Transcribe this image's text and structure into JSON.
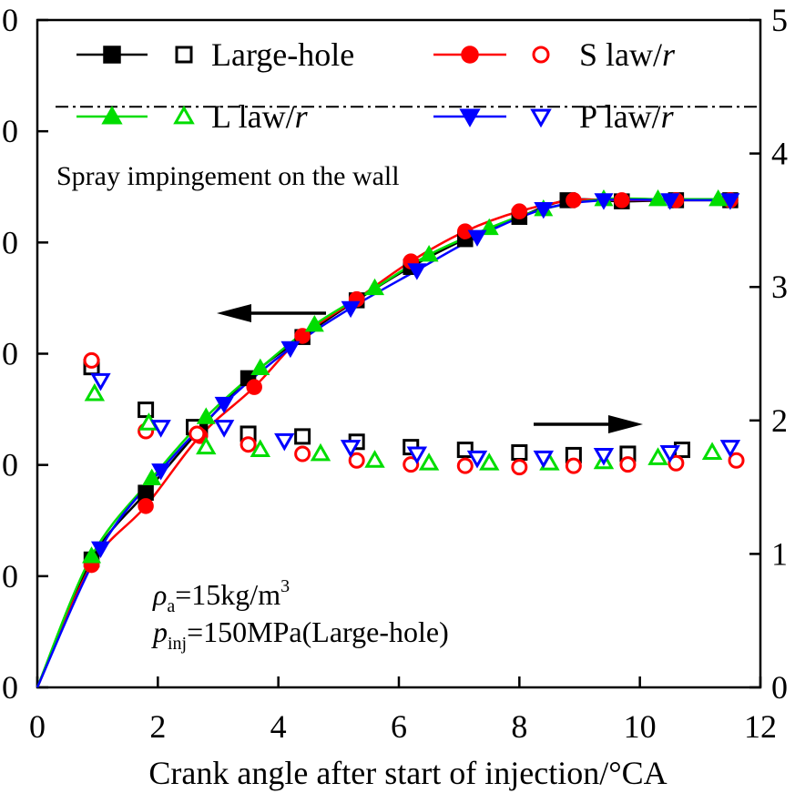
{
  "chart_data": {
    "type": "line",
    "xlabel": "Crank angle after start of injection/°CA",
    "x_ticks": [
      "0",
      "2",
      "4",
      "6",
      "8",
      "10",
      "12"
    ],
    "xlim": [
      0,
      12
    ],
    "ylim_left": [
      0,
      60
    ],
    "ylim_right": [
      0,
      5
    ],
    "y_left_ticks": [
      "0",
      "0",
      "0",
      "0",
      "0",
      "0",
      "0"
    ],
    "y_right_ticks": [
      "0",
      "1",
      "2",
      "3",
      "4",
      "5"
    ],
    "annotation": "Spray impingement on the wall",
    "impingement_level_left": 52.2,
    "notes": {
      "density_var": "ρ",
      "density_sub": "a",
      "density_rest": "=15kg/m",
      "density_sup": "3",
      "pressure_var": "p",
      "pressure_sub": "inj",
      "pressure_rest": "=150MPa(Large-hole)"
    },
    "series": [
      {
        "name": "Large-hole",
        "legend_italic": "",
        "color": "#000000",
        "filled_marker": "square",
        "open_marker": "square",
        "penetration_x": [
          0,
          0.9,
          1.8,
          2.7,
          3.5,
          4.4,
          5.3,
          6.2,
          7.1,
          8.0,
          8.8,
          9.7,
          10.6,
          11.5
        ],
        "penetration_y": [
          0,
          11.5,
          17.5,
          23.2,
          27.8,
          31.5,
          34.8,
          37.8,
          40.3,
          42.3,
          43.8,
          43.7,
          43.8,
          43.8
        ],
        "diameter_x": [
          0.9,
          1.8,
          2.6,
          3.5,
          4.4,
          5.3,
          6.2,
          7.1,
          8.0,
          8.9,
          9.8,
          10.7
        ],
        "diameter_y": [
          2.4,
          2.08,
          1.95,
          1.9,
          1.88,
          1.84,
          1.8,
          1.78,
          1.76,
          1.74,
          1.75,
          1.78
        ]
      },
      {
        "name": "S law/",
        "legend_italic": "r",
        "color": "#ff0000",
        "filled_marker": "circle",
        "open_marker": "circle",
        "penetration_x": [
          0,
          0.9,
          1.8,
          2.7,
          3.6,
          4.4,
          5.3,
          6.2,
          7.1,
          8.0,
          8.9,
          9.7,
          10.6,
          11.5
        ],
        "penetration_y": [
          0,
          11.0,
          16.3,
          22.6,
          27.0,
          31.6,
          34.9,
          38.3,
          41.0,
          42.8,
          43.8,
          43.8,
          43.8,
          43.8
        ],
        "diameter_x": [
          0.9,
          1.8,
          2.65,
          3.5,
          4.4,
          5.3,
          6.2,
          7.1,
          8.0,
          8.9,
          9.8,
          10.6,
          11.6
        ],
        "diameter_y": [
          2.45,
          1.92,
          1.9,
          1.82,
          1.75,
          1.7,
          1.67,
          1.66,
          1.65,
          1.66,
          1.67,
          1.68,
          1.7
        ]
      },
      {
        "name": "L law/",
        "legend_italic": "r",
        "color": "#00dd00",
        "filled_marker": "triangle-up",
        "open_marker": "triangle-up",
        "penetration_x": [
          0,
          0.9,
          1.9,
          2.8,
          3.7,
          4.6,
          5.6,
          6.5,
          7.5,
          8.4,
          9.4,
          10.3,
          11.3
        ],
        "penetration_y": [
          0,
          11.8,
          18.8,
          24.3,
          28.7,
          32.6,
          35.9,
          38.9,
          41.3,
          43.0,
          43.9,
          43.9,
          43.9
        ],
        "diameter_x": [
          0.95,
          1.85,
          2.8,
          3.7,
          4.7,
          5.6,
          6.5,
          7.5,
          8.5,
          9.4,
          10.3,
          11.2
        ],
        "diameter_y": [
          2.2,
          1.98,
          1.8,
          1.78,
          1.75,
          1.7,
          1.68,
          1.68,
          1.68,
          1.69,
          1.72,
          1.76
        ]
      },
      {
        "name": "P law/",
        "legend_italic": "r",
        "color": "#0000ff",
        "filled_marker": "triangle-down",
        "open_marker": "triangle-down",
        "penetration_x": [
          0,
          1.05,
          2.05,
          3.1,
          4.2,
          5.2,
          6.3,
          7.3,
          8.4,
          9.4,
          10.5,
          11.5
        ],
        "penetration_y": [
          0,
          12.5,
          19.5,
          25.5,
          30.5,
          34.1,
          37.5,
          40.5,
          43.0,
          43.8,
          43.8,
          43.8
        ],
        "diameter_x": [
          1.05,
          2.05,
          3.1,
          4.1,
          5.2,
          6.3,
          7.3,
          8.4,
          9.4,
          10.5,
          11.5
        ],
        "diameter_y": [
          2.3,
          1.95,
          1.95,
          1.85,
          1.8,
          1.75,
          1.72,
          1.72,
          1.74,
          1.76,
          1.8
        ]
      }
    ]
  }
}
